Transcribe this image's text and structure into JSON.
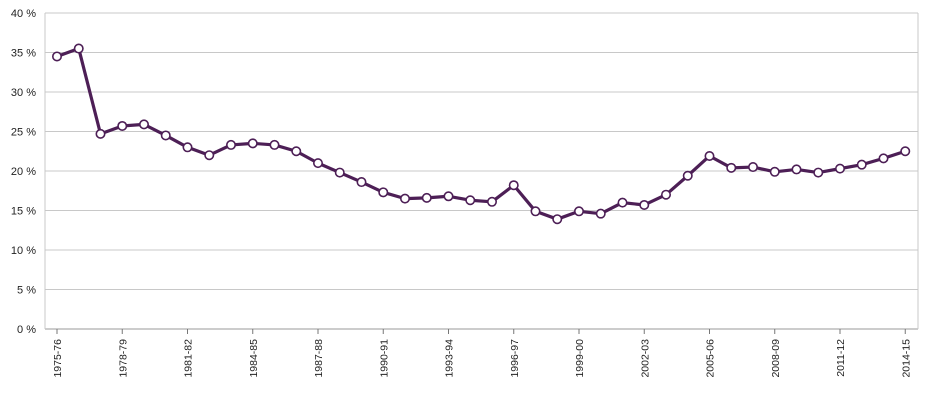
{
  "chart_data": {
    "type": "line",
    "title": "",
    "xlabel": "",
    "ylabel": "",
    "ylim": [
      0,
      40
    ],
    "yticks": [
      "0 %",
      "5 %",
      "10 %",
      "15 %",
      "20 %",
      "25 %",
      "30 %",
      "35 %",
      "40 %"
    ],
    "grid": true,
    "line_color": "#4d1f56",
    "marker_fill": "#ffffff",
    "x_labels": [
      {
        "label": "1975-76",
        "index": 0
      },
      {
        "label": "1978-79",
        "index": 3
      },
      {
        "label": "1981-82",
        "index": 6
      },
      {
        "label": "1984-85",
        "index": 9
      },
      {
        "label": "1987-88",
        "index": 12
      },
      {
        "label": "1990-91",
        "index": 15
      },
      {
        "label": "1993-94",
        "index": 18
      },
      {
        "label": "1996-97",
        "index": 21
      },
      {
        "label": "1999-00",
        "index": 24
      },
      {
        "label": "2002-03",
        "index": 27
      },
      {
        "label": "2005-06",
        "index": 30
      },
      {
        "label": "2008-09",
        "index": 33
      },
      {
        "label": "2011-12",
        "index": 36
      },
      {
        "label": "2014-15",
        "index": 39
      }
    ],
    "series": [
      {
        "values": [
          34.5,
          35.5,
          24.7,
          25.7,
          25.9,
          24.5,
          23.0,
          22.0,
          23.3,
          23.5,
          23.3,
          22.5,
          21.0,
          19.8,
          18.6,
          17.3,
          16.5,
          16.6,
          16.8,
          16.3,
          16.1,
          18.2,
          14.9,
          13.9,
          14.9,
          14.6,
          16.0,
          15.7,
          17.0,
          19.4,
          21.9,
          20.4,
          20.5,
          19.9,
          20.2,
          19.8,
          20.3,
          20.8,
          21.6,
          22.5
        ]
      }
    ]
  }
}
